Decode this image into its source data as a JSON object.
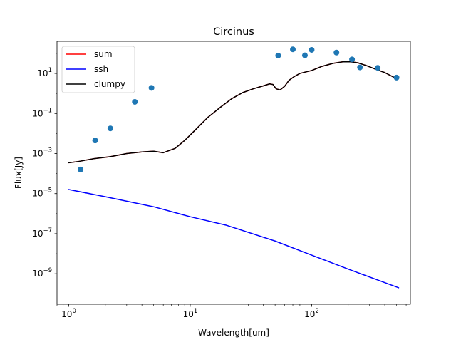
{
  "chart_data": {
    "type": "scatter",
    "title": "Circinus",
    "xlabel": "Wavelength[um]",
    "ylabel": "Flux[Jy]",
    "xscale": "log",
    "yscale": "log",
    "xlim": [
      0.8,
      650
    ],
    "ylim": [
      3e-11,
      400
    ],
    "xticks": [
      {
        "value": 1,
        "label": "10",
        "exp": "0"
      },
      {
        "value": 10,
        "label": "10",
        "exp": "1"
      },
      {
        "value": 100,
        "label": "10",
        "exp": "2"
      }
    ],
    "yticks": [
      {
        "value": 1e-09,
        "label": "10",
        "exp": "−9"
      },
      {
        "value": 1e-07,
        "label": "10",
        "exp": "−7"
      },
      {
        "value": 1e-05,
        "label": "10",
        "exp": "−5"
      },
      {
        "value": 0.001,
        "label": "10",
        "exp": "−3"
      },
      {
        "value": 0.1,
        "label": "10",
        "exp": "−1"
      },
      {
        "value": 10,
        "label": "10",
        "exp": "1"
      }
    ],
    "legend": {
      "placement": "top-left",
      "entries": [
        "sum",
        "ssh",
        "clumpy"
      ]
    },
    "grid": false,
    "series": [
      {
        "name": "sum",
        "style": "line",
        "color": "#ff0000",
        "x": [
          1.0,
          1.2,
          1.6,
          2.2,
          3.0,
          4.0,
          5.0,
          6.0,
          7.5,
          9.0,
          11,
          14,
          18,
          22,
          27,
          33,
          40,
          45,
          48,
          51,
          55,
          60,
          65,
          72,
          80,
          90,
          100,
          120,
          150,
          180,
          210,
          240,
          280,
          330,
          400,
          500
        ],
        "y": [
          0.00035,
          0.0004,
          0.00055,
          0.0007,
          0.001,
          0.0012,
          0.0013,
          0.0011,
          0.0018,
          0.0045,
          0.015,
          0.065,
          0.22,
          0.55,
          1.1,
          1.7,
          2.4,
          3.0,
          2.8,
          1.7,
          1.5,
          2.3,
          4.5,
          7.0,
          10,
          12,
          14,
          22,
          32,
          38,
          38,
          34,
          25,
          17,
          11,
          5.5
        ]
      },
      {
        "name": "ssh",
        "style": "line",
        "color": "#0000ff",
        "x": [
          1.0,
          2.0,
          5.0,
          10,
          20,
          50,
          100,
          200,
          520
        ],
        "y": [
          1.6e-05,
          7e-06,
          2.2e-06,
          7e-07,
          2.6e-07,
          4.3e-08,
          8.5e-09,
          1.7e-09,
          2e-10
        ]
      },
      {
        "name": "clumpy",
        "style": "line",
        "color": "#000000",
        "x": [
          1.0,
          1.2,
          1.6,
          2.2,
          3.0,
          4.0,
          5.0,
          6.0,
          7.5,
          9.0,
          11,
          14,
          18,
          22,
          27,
          33,
          40,
          45,
          48,
          51,
          55,
          60,
          65,
          72,
          80,
          90,
          100,
          120,
          150,
          180,
          210,
          240,
          280,
          330,
          400,
          500
        ],
        "y": [
          0.00035,
          0.0004,
          0.00055,
          0.0007,
          0.001,
          0.0012,
          0.0013,
          0.0011,
          0.0018,
          0.0045,
          0.015,
          0.065,
          0.22,
          0.55,
          1.1,
          1.7,
          2.4,
          3.0,
          2.8,
          1.7,
          1.5,
          2.3,
          4.5,
          7.0,
          10,
          12,
          14,
          22,
          32,
          38,
          38,
          34,
          25,
          17,
          11,
          5.5
        ]
      },
      {
        "name": "",
        "style": "points",
        "color": "#1f77b4",
        "x": [
          1.25,
          1.65,
          2.2,
          3.5,
          4.8,
          53,
          70,
          88,
          100,
          160,
          215,
          250,
          350,
          500
        ],
        "y": [
          0.00016,
          0.0045,
          0.018,
          0.38,
          1.9,
          78,
          160,
          80,
          150,
          110,
          50,
          20,
          19,
          6.2
        ]
      }
    ]
  }
}
